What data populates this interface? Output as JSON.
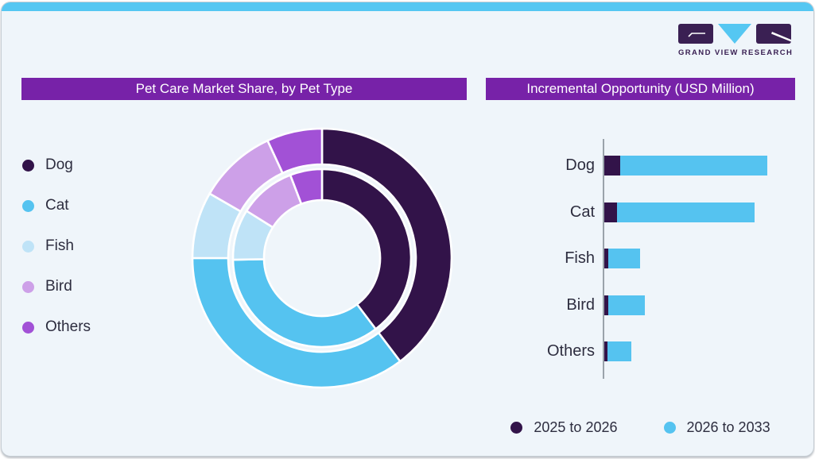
{
  "brand": {
    "wordmark": "GRAND VIEW RESEARCH",
    "logo_dark_color": "#3a2053",
    "logo_blue_color": "#55c7f2"
  },
  "frame": {
    "topbar_color": "#55c7f2",
    "header_bar_color": "#7722a8",
    "background_color": "#eff5fa"
  },
  "left_panel": {
    "title": "Pet Care Market Share, by Pet Type"
  },
  "right_panel": {
    "title": "Incremental Opportunity (USD Million)"
  },
  "chart_data": [
    {
      "type": "pie",
      "subtype": "double-ring-donut",
      "title": "Pet Care Market Share, by Pet Type",
      "categories": [
        "Dog",
        "Cat",
        "Fish",
        "Bird",
        "Others"
      ],
      "colors": [
        "#321349",
        "#55c3f0",
        "#bfe3f7",
        "#cda0e8",
        "#a251d6"
      ],
      "series": [
        {
          "name": "outer ring",
          "values": [
            39.7,
            35.3,
            8.3,
            9.8,
            6.9
          ]
        },
        {
          "name": "inner ring",
          "values": [
            39.7,
            35.0,
            9.2,
            10.3,
            5.8
          ]
        }
      ],
      "units": "percent of circle (estimated from arc angles; no value labels shown)",
      "start_angle_deg": 0,
      "direction": "clockwise",
      "legend_position": "left"
    },
    {
      "type": "bar",
      "orientation": "horizontal",
      "stacked": true,
      "title": "Incremental Opportunity (USD Million)",
      "categories": [
        "Dog",
        "Cat",
        "Fish",
        "Bird",
        "Others"
      ],
      "series": [
        {
          "name": "2025 to 2026",
          "color": "#321349",
          "values": [
            9.9,
            8.0,
            2.3,
            2.6,
            2.1
          ]
        },
        {
          "name": "2026 to 2033",
          "color": "#55c3f0",
          "values": [
            90.1,
            84.4,
            19.5,
            22.2,
            14.3
          ]
        }
      ],
      "value_axis": "relative units, max stacked bar = 100 (no tick labels shown)",
      "grid": false,
      "legend_position": "bottom"
    }
  ]
}
